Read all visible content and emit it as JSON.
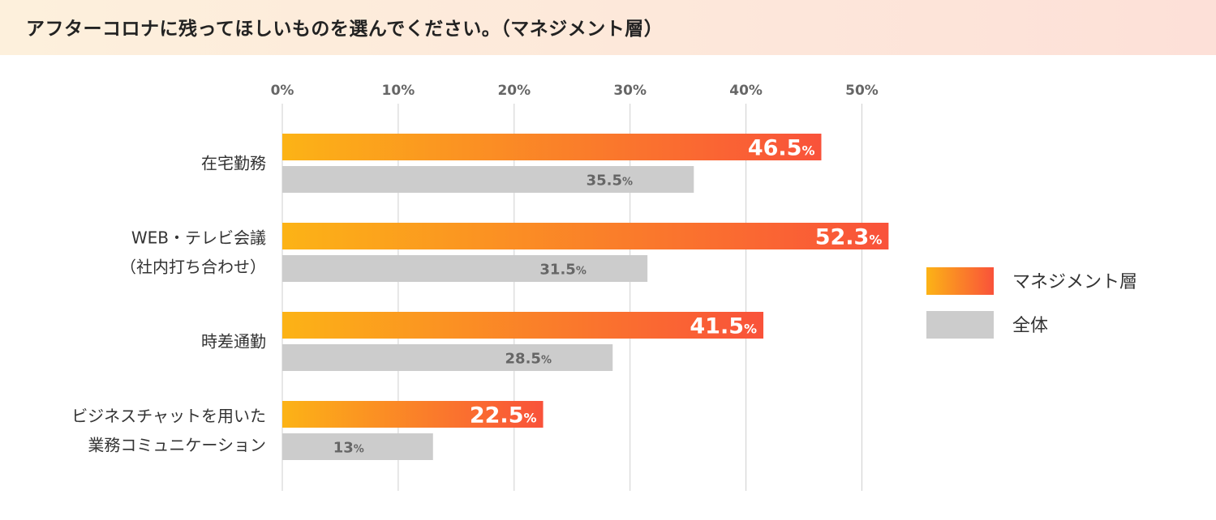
{
  "title": "アフターコロナに残ってほしいものを選んでください。（マネジメント層）",
  "chart_data": {
    "type": "bar",
    "orientation": "horizontal",
    "categories": [
      [
        "在宅勤務"
      ],
      [
        "WEB・テレビ会議",
        "（社内打ち合わせ）"
      ],
      [
        "時差通勤"
      ],
      [
        "ビジネスチャットを用いた",
        "業務コミュニケーション"
      ]
    ],
    "series": [
      {
        "name": "マネジメント層",
        "values": [
          46.5,
          52.3,
          41.5,
          22.5
        ],
        "labels": [
          "46.5",
          "52.3",
          "41.5",
          "22.5"
        ],
        "color_start": "#fcb316",
        "color_end": "#f9523a"
      },
      {
        "name": "全体",
        "values": [
          35.5,
          31.5,
          28.5,
          13
        ],
        "labels": [
          "35.5",
          "31.5",
          "28.5",
          "13"
        ],
        "color": "#cccccc"
      }
    ],
    "x_ticks": [
      "0%",
      "10%",
      "20%",
      "30%",
      "40%",
      "50%"
    ],
    "unit": "%",
    "xlim": [
      0,
      50
    ],
    "grid": true,
    "legend_position": "right"
  }
}
